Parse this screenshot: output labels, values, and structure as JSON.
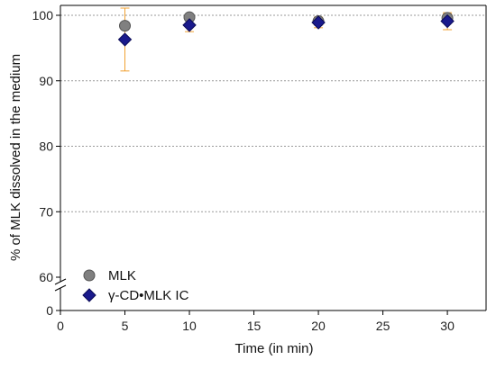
{
  "chart_data": {
    "type": "scatter",
    "xlabel": "Time (in min)",
    "ylabel": "% of MLK dissolved in the medium",
    "xlim": [
      0,
      33
    ],
    "x_ticks": [
      "0",
      "5",
      "10",
      "15",
      "20",
      "25",
      "30"
    ],
    "y_ticks": [
      "0",
      "60",
      "70",
      "80",
      "90",
      "100"
    ],
    "y_axis_break": "between 0 and 60",
    "grid": "horizontal dotted lines at 70, 80, 90, 100",
    "legend_position": "bottom-left",
    "series": [
      {
        "name": "MLK",
        "marker": "circle",
        "color": "#808080",
        "error_bar_color": "#F0A030",
        "points": [
          {
            "x": 5,
            "y": 98.4,
            "err": 0.5
          },
          {
            "x": 10,
            "y": 99.7,
            "err": 0.4
          },
          {
            "x": 20,
            "y": 99.1,
            "err": 0.6
          },
          {
            "x": 30,
            "y": 99.6,
            "err": 0.6
          }
        ]
      },
      {
        "name": "γ-CD•MLK IC",
        "marker": "diamond",
        "color": "#1A1A8C",
        "error_bar_color": "#F0A030",
        "points": [
          {
            "x": 5,
            "y": 96.3,
            "err": 4.8
          },
          {
            "x": 10,
            "y": 98.5,
            "err": 1.0
          },
          {
            "x": 20,
            "y": 98.9,
            "err": 0.8
          },
          {
            "x": 30,
            "y": 99.1,
            "err": 1.3
          }
        ]
      }
    ]
  }
}
